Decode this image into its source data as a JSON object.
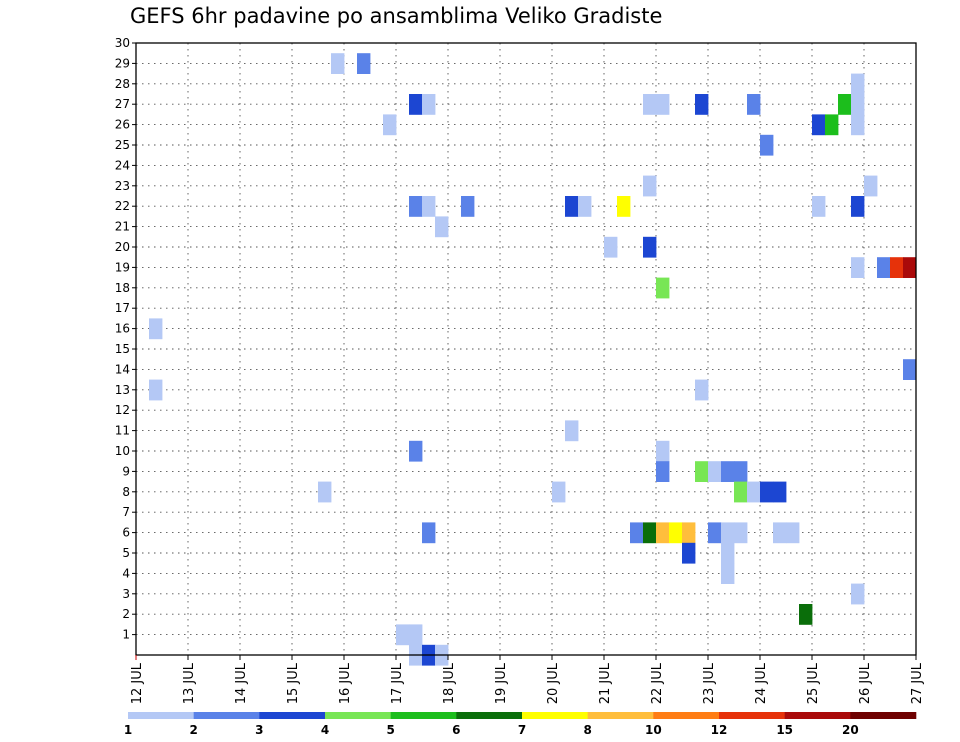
{
  "chart_data": {
    "type": "heatmap",
    "title": "GEFS 6hr padavine po ansamblima Veliko Gradiste",
    "x_ticks": [
      "12 JUL",
      "13 JUL",
      "14 JUL",
      "15 JUL",
      "16 JUL",
      "17 JUL",
      "18 JUL",
      "19 JUL",
      "20 JUL",
      "21 JUL",
      "22 JUL",
      "23 JUL",
      "24 JUL",
      "25 JUL",
      "26 JUL",
      "27 JUL"
    ],
    "y_ticks": [
      1,
      2,
      3,
      4,
      5,
      6,
      7,
      8,
      9,
      10,
      11,
      12,
      13,
      14,
      15,
      16,
      17,
      18,
      19,
      20,
      21,
      22,
      23,
      24,
      25,
      26,
      27,
      28,
      29,
      30
    ],
    "x_range_days": [
      12,
      27
    ],
    "y_range": [
      0,
      30
    ],
    "grid": true,
    "legend_placement": "bottom",
    "legend": {
      "colors": [
        "#b4c8f5",
        "#5a82e8",
        "#1c46d2",
        "#78e655",
        "#1cbe1c",
        "#0a6e0a",
        "#ffff00",
        "#ffbe3c",
        "#ff7d14",
        "#e6320a",
        "#aa0a0a",
        "#6e0000"
      ],
      "labels": [
        "1",
        "2",
        "3",
        "4",
        "5",
        "6",
        "7",
        "8",
        "10",
        "12",
        "15",
        "20"
      ]
    },
    "cells": [
      {
        "t": 15.75,
        "m": 29,
        "c": 0
      },
      {
        "t": 16.25,
        "m": 29,
        "c": 1
      },
      {
        "t": 25.75,
        "m": 28,
        "c": 0
      },
      {
        "t": 17.25,
        "m": 27,
        "c": 2
      },
      {
        "t": 17.5,
        "m": 27,
        "c": 0
      },
      {
        "t": 21.75,
        "m": 27,
        "c": 0
      },
      {
        "t": 22.0,
        "m": 27,
        "c": 0
      },
      {
        "t": 22.75,
        "m": 27,
        "c": 2
      },
      {
        "t": 23.75,
        "m": 27,
        "c": 1
      },
      {
        "t": 25.5,
        "m": 27,
        "c": 4
      },
      {
        "t": 25.75,
        "m": 27,
        "c": 0
      },
      {
        "t": 16.75,
        "m": 26,
        "c": 0
      },
      {
        "t": 25.0,
        "m": 26,
        "c": 2
      },
      {
        "t": 25.25,
        "m": 26,
        "c": 4
      },
      {
        "t": 25.75,
        "m": 26,
        "c": 0
      },
      {
        "t": 24.0,
        "m": 25,
        "c": 1
      },
      {
        "t": 21.75,
        "m": 23,
        "c": 0
      },
      {
        "t": 26.0,
        "m": 23,
        "c": 0
      },
      {
        "t": 17.25,
        "m": 22,
        "c": 1
      },
      {
        "t": 17.5,
        "m": 22,
        "c": 0
      },
      {
        "t": 18.25,
        "m": 22,
        "c": 1
      },
      {
        "t": 20.25,
        "m": 22,
        "c": 2
      },
      {
        "t": 20.5,
        "m": 22,
        "c": 0
      },
      {
        "t": 21.25,
        "m": 22,
        "c": 6
      },
      {
        "t": 25.0,
        "m": 22,
        "c": 0
      },
      {
        "t": 25.75,
        "m": 22,
        "c": 2
      },
      {
        "t": 17.75,
        "m": 21,
        "c": 0
      },
      {
        "t": 21.0,
        "m": 20,
        "c": 0
      },
      {
        "t": 21.75,
        "m": 20,
        "c": 2
      },
      {
        "t": 25.75,
        "m": 19,
        "c": 0
      },
      {
        "t": 26.25,
        "m": 19,
        "c": 1
      },
      {
        "t": 26.5,
        "m": 19,
        "c": 9
      },
      {
        "t": 26.75,
        "m": 19,
        "c": 10
      },
      {
        "t": 22.0,
        "m": 18,
        "c": 3
      },
      {
        "t": 12.25,
        "m": 16,
        "c": 0
      },
      {
        "t": 26.75,
        "m": 14,
        "c": 1
      },
      {
        "t": 12.25,
        "m": 13,
        "c": 0
      },
      {
        "t": 22.75,
        "m": 13,
        "c": 0
      },
      {
        "t": 20.25,
        "m": 11,
        "c": 0
      },
      {
        "t": 17.25,
        "m": 10,
        "c": 1
      },
      {
        "t": 22.0,
        "m": 10,
        "c": 0
      },
      {
        "t": 22.0,
        "m": 9,
        "c": 1
      },
      {
        "t": 22.75,
        "m": 9,
        "c": 3
      },
      {
        "t": 23.0,
        "m": 9,
        "c": 0
      },
      {
        "t": 23.25,
        "m": 9,
        "c": 1
      },
      {
        "t": 23.5,
        "m": 9,
        "c": 1
      },
      {
        "t": 15.5,
        "m": 8,
        "c": 0
      },
      {
        "t": 20.0,
        "m": 8,
        "c": 0
      },
      {
        "t": 23.5,
        "m": 8,
        "c": 3
      },
      {
        "t": 23.75,
        "m": 8,
        "c": 0
      },
      {
        "t": 24.0,
        "m": 8,
        "c": 2
      },
      {
        "t": 24.25,
        "m": 8,
        "c": 2
      },
      {
        "t": 17.5,
        "m": 6,
        "c": 1
      },
      {
        "t": 21.5,
        "m": 6,
        "c": 1
      },
      {
        "t": 21.75,
        "m": 6,
        "c": 5
      },
      {
        "t": 22.0,
        "m": 6,
        "c": 7
      },
      {
        "t": 22.25,
        "m": 6,
        "c": 6
      },
      {
        "t": 22.5,
        "m": 6,
        "c": 7
      },
      {
        "t": 23.0,
        "m": 6,
        "c": 1
      },
      {
        "t": 23.25,
        "m": 6,
        "c": 0
      },
      {
        "t": 23.5,
        "m": 6,
        "c": 0
      },
      {
        "t": 24.25,
        "m": 6,
        "c": 0
      },
      {
        "t": 24.5,
        "m": 6,
        "c": 0
      },
      {
        "t": 22.5,
        "m": 5,
        "c": 2
      },
      {
        "t": 23.25,
        "m": 5,
        "c": 0
      },
      {
        "t": 23.25,
        "m": 4,
        "c": 0
      },
      {
        "t": 25.75,
        "m": 3,
        "c": 0
      },
      {
        "t": 24.75,
        "m": 2,
        "c": 5
      },
      {
        "t": 17.0,
        "m": 1,
        "c": 0
      },
      {
        "t": 17.25,
        "m": 1,
        "c": 0
      },
      {
        "t": 17.25,
        "m": 0,
        "c": 0
      },
      {
        "t": 17.5,
        "m": 0,
        "c": 2
      },
      {
        "t": 17.75,
        "m": 0,
        "c": 0
      }
    ]
  }
}
